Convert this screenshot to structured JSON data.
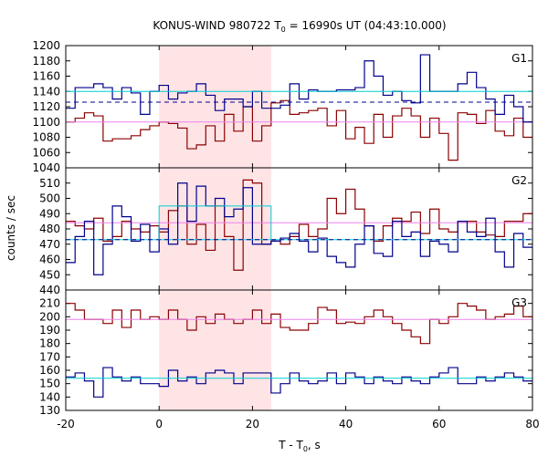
{
  "chart_data": {
    "type": "line",
    "title_main": "KONUS-WIND 980722 T",
    "title_sub": "0",
    "title_rest": " = 16990s UT (04:43:10.000)",
    "xlabel_main": "T - T",
    "xlabel_sub": "0",
    "xlabel_rest": ", s",
    "ylabel": "counts / sec",
    "xlim": [
      -20,
      80
    ],
    "xticks": [
      -20,
      0,
      20,
      40,
      60,
      80
    ],
    "highlight_interval": [
      0,
      24
    ],
    "colors": {
      "red_series": "#8b0000",
      "blue_series": "#00008b",
      "red_level": "#ee82ee",
      "blue_level": "#00ced1",
      "highlight": "#ffe4e6"
    },
    "bin_edges": [
      -20,
      -18,
      -16,
      -14,
      -12,
      -10,
      -8,
      -6,
      -4,
      -2,
      0,
      2,
      4,
      6,
      8,
      10,
      12,
      14,
      16,
      18,
      20,
      22,
      24,
      26,
      28,
      30,
      32,
      34,
      36,
      38,
      40,
      42,
      44,
      46,
      48,
      50,
      52,
      54,
      56,
      58,
      60,
      62,
      64,
      66,
      68,
      70,
      72,
      74,
      76,
      78,
      80
    ],
    "panels": [
      {
        "label": "G1",
        "ylim": [
          1040,
          1200
        ],
        "yticks": [
          1040,
          1060,
          1080,
          1100,
          1120,
          1140,
          1160,
          1180,
          1200
        ],
        "series": [
          {
            "color": "red",
            "values": [
              1100,
              1105,
              1112,
              1108,
              1075,
              1078,
              1078,
              1082,
              1090,
              1095,
              1100,
              1098,
              1092,
              1065,
              1070,
              1095,
              1075,
              1110,
              1088,
              1120,
              1075,
              1095,
              1125,
              1128,
              1110,
              1112,
              1115,
              1118,
              1095,
              1115,
              1078,
              1093,
              1072,
              1110,
              1080,
              1108,
              1118,
              1108,
              1080,
              1105,
              1085,
              1050,
              1112,
              1110,
              1098,
              1115,
              1088,
              1082,
              1105,
              1080
            ],
            "level": 1100
          },
          {
            "color": "blue",
            "values": [
              1118,
              1145,
              1145,
              1150,
              1145,
              1130,
              1145,
              1138,
              1110,
              1140,
              1148,
              1130,
              1138,
              1140,
              1150,
              1135,
              1115,
              1130,
              1130,
              1120,
              1140,
              1118,
              1118,
              1122,
              1150,
              1130,
              1142,
              1140,
              1140,
              1142,
              1142,
              1145,
              1180,
              1160,
              1135,
              1140,
              1128,
              1125,
              1188,
              1140,
              1140,
              1140,
              1150,
              1165,
              1145,
              1130,
              1110,
              1135,
              1120,
              1100
            ],
            "level": 1140,
            "level_dashed": 1126
          }
        ]
      },
      {
        "label": "G2",
        "ylim": [
          440,
          520
        ],
        "yticks": [
          440,
          450,
          460,
          470,
          480,
          490,
          500,
          510
        ],
        "series": [
          {
            "color": "red",
            "values": [
              485,
              482,
              480,
              487,
              472,
              475,
              485,
              480,
              478,
              482,
              478,
              492,
              495,
              470,
              483,
              466,
              495,
              475,
              453,
              512,
              510,
              470,
              472,
              470,
              475,
              483,
              475,
              480,
              500,
              490,
              506,
              493,
              482,
              472,
              482,
              487,
              485,
              491,
              477,
              493,
              480,
              478,
              485,
              485,
              478,
              476,
              475,
              485,
              485,
              490
            ],
            "level": 484
          },
          {
            "color": "blue",
            "values": [
              458,
              475,
              485,
              450,
              470,
              495,
              488,
              472,
              483,
              465,
              480,
              470,
              510,
              485,
              508,
              495,
              500,
              488,
              493,
              507,
              470,
              470,
              472,
              474,
              477,
              472,
              465,
              474,
              462,
              458,
              455,
              470,
              482,
              464,
              462,
              485,
              475,
              478,
              462,
              472,
              470,
              465,
              485,
              478,
              475,
              487,
              465,
              455,
              477,
              468
            ],
            "level": 473,
            "level_dashed": 473,
            "level_box": 495
          }
        ]
      },
      {
        "label": "G3",
        "ylim": [
          130,
          220
        ],
        "yticks": [
          130,
          140,
          150,
          160,
          170,
          180,
          190,
          200,
          210
        ],
        "series": [
          {
            "color": "red",
            "values": [
              210,
              205,
              198,
              198,
              195,
              205,
              192,
              205,
              198,
              200,
              198,
              205,
              198,
              190,
              200,
              195,
              202,
              198,
              195,
              198,
              205,
              195,
              202,
              192,
              190,
              190,
              195,
              207,
              205,
              195,
              196,
              195,
              200,
              205,
              200,
              195,
              190,
              185,
              180,
              198,
              195,
              200,
              210,
              208,
              205,
              198,
              200,
              202,
              208,
              200
            ],
            "level": 198
          },
          {
            "color": "blue",
            "values": [
              155,
              158,
              152,
              140,
              162,
              155,
              152,
              155,
              150,
              150,
              148,
              160,
              152,
              155,
              150,
              158,
              160,
              158,
              150,
              158,
              158,
              158,
              143,
              150,
              158,
              152,
              150,
              152,
              158,
              150,
              158,
              155,
              150,
              155,
              152,
              150,
              155,
              152,
              150,
              155,
              158,
              162,
              150,
              150,
              155,
              152,
              155,
              158,
              155,
              152
            ],
            "level": 154
          }
        ]
      }
    ]
  }
}
